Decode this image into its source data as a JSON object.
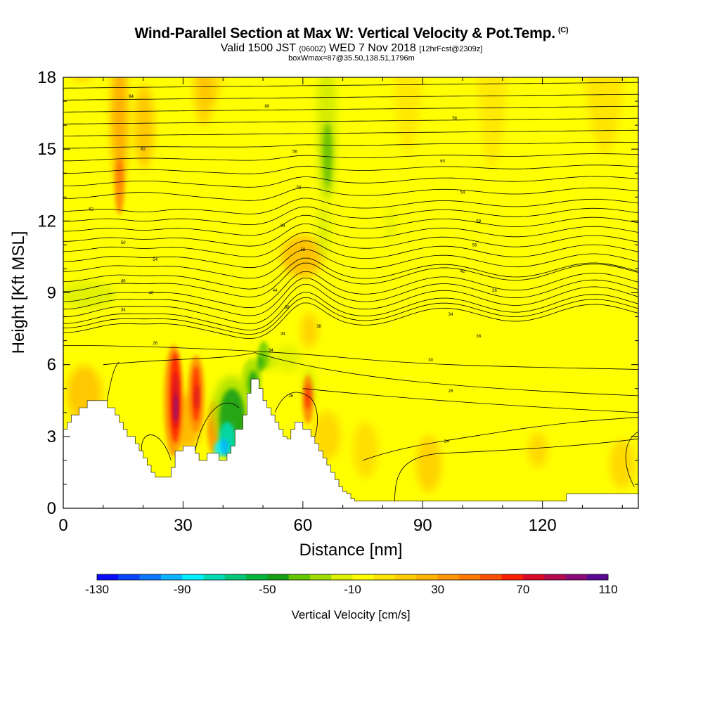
{
  "header": {
    "title": "Wind-Parallel Section at Max W: Vertical Velocity & Pot.Temp.",
    "copyright": "(C)",
    "valid_prefix": "Valid 1500 JST",
    "valid_utc": "(0600Z)",
    "valid_date": "WED 7 Nov 2018",
    "forecast": "[12hrFcst@2309z]",
    "boxinfo": "boxWmax=87@35.50,138.51,1796m"
  },
  "chart_data": {
    "type": "heatmap",
    "xlabel": "Distance [nm]",
    "ylabel": "Height [Kft MSL]",
    "xlim": [
      0,
      144
    ],
    "ylim": [
      0,
      18
    ],
    "xticks": [
      "0",
      "30",
      "60",
      "90",
      "120"
    ],
    "yticks": [
      "0",
      "3",
      "6",
      "9",
      "12",
      "15",
      "18"
    ],
    "colorbar": {
      "label": "Vertical Velocity [cm/s]",
      "min": -130,
      "max": 110,
      "step": 10,
      "tick_labels": [
        "-130",
        "-90",
        "-50",
        "-10",
        "30",
        "70",
        "110"
      ],
      "colors": [
        "#0a0aff",
        "#0a46ff",
        "#0a78ff",
        "#0ab4ff",
        "#00f0ff",
        "#00dcb4",
        "#00c878",
        "#00b43c",
        "#14a014",
        "#64c800",
        "#a0dc00",
        "#dcf000",
        "#ffff00",
        "#ffe600",
        "#ffcd00",
        "#ffb400",
        "#ff9600",
        "#ff7800",
        "#ff5000",
        "#ff1e00",
        "#dc0a28",
        "#b40a50",
        "#8c0a78",
        "#5a0a96"
      ]
    },
    "terrain": [
      [
        0,
        3.3
      ],
      [
        1,
        3.3
      ],
      [
        1,
        3.6
      ],
      [
        2,
        3.6
      ],
      [
        2,
        3.9
      ],
      [
        4,
        3.9
      ],
      [
        4,
        4.2
      ],
      [
        6,
        4.2
      ],
      [
        6,
        4.5
      ],
      [
        11,
        4.5
      ],
      [
        11,
        4.2
      ],
      [
        13,
        4.2
      ],
      [
        13,
        3.9
      ],
      [
        14,
        3.9
      ],
      [
        14,
        3.6
      ],
      [
        15,
        3.6
      ],
      [
        15,
        3.3
      ],
      [
        16,
        3.3
      ],
      [
        16,
        3.0
      ],
      [
        18,
        3.0
      ],
      [
        18,
        2.7
      ],
      [
        19,
        2.7
      ],
      [
        19,
        2.4
      ],
      [
        20,
        2.4
      ],
      [
        20,
        2.1
      ],
      [
        21,
        2.1
      ],
      [
        21,
        1.8
      ],
      [
        22,
        1.8
      ],
      [
        22,
        1.5
      ],
      [
        23,
        1.5
      ],
      [
        23,
        1.3
      ],
      [
        27,
        1.3
      ],
      [
        27,
        1.7
      ],
      [
        28,
        1.7
      ],
      [
        28,
        2.4
      ],
      [
        30,
        2.4
      ],
      [
        30,
        2.6
      ],
      [
        33,
        2.6
      ],
      [
        33,
        2.3
      ],
      [
        34,
        2.3
      ],
      [
        34,
        2.0
      ],
      [
        36,
        2.0
      ],
      [
        36,
        2.3
      ],
      [
        39,
        2.3
      ],
      [
        39,
        2.0
      ],
      [
        41,
        2.0
      ],
      [
        41,
        2.3
      ],
      [
        42,
        2.3
      ],
      [
        42,
        2.6
      ],
      [
        43,
        2.6
      ],
      [
        43,
        3.3
      ],
      [
        45,
        3.3
      ],
      [
        45,
        3.9
      ],
      [
        46,
        3.9
      ],
      [
        46,
        4.8
      ],
      [
        47,
        4.8
      ],
      [
        47,
        5.4
      ],
      [
        49,
        5.4
      ],
      [
        49,
        5.0
      ],
      [
        50,
        5.0
      ],
      [
        50,
        4.5
      ],
      [
        51,
        4.5
      ],
      [
        51,
        4.2
      ],
      [
        52,
        4.2
      ],
      [
        52,
        3.9
      ],
      [
        53,
        3.9
      ],
      [
        53,
        3.6
      ],
      [
        54,
        3.6
      ],
      [
        54,
        3.3
      ],
      [
        55,
        3.3
      ],
      [
        55,
        3.0
      ],
      [
        56,
        3.0
      ],
      [
        56,
        2.9
      ],
      [
        57,
        2.9
      ],
      [
        57,
        3.3
      ],
      [
        58,
        3.3
      ],
      [
        58,
        3.6
      ],
      [
        60,
        3.6
      ],
      [
        60,
        3.3
      ],
      [
        62,
        3.3
      ],
      [
        62,
        3.0
      ],
      [
        63,
        3.0
      ],
      [
        63,
        2.7
      ],
      [
        64,
        2.7
      ],
      [
        64,
        2.4
      ],
      [
        65,
        2.4
      ],
      [
        65,
        2.1
      ],
      [
        66,
        2.1
      ],
      [
        66,
        1.8
      ],
      [
        67,
        1.8
      ],
      [
        67,
        1.5
      ],
      [
        68,
        1.5
      ],
      [
        68,
        1.2
      ],
      [
        69,
        1.2
      ],
      [
        69,
        0.9
      ],
      [
        70,
        0.9
      ],
      [
        70,
        0.7
      ],
      [
        71,
        0.7
      ],
      [
        71,
        0.6
      ],
      [
        72,
        0.6
      ],
      [
        72,
        0.4
      ],
      [
        73,
        0.4
      ],
      [
        73,
        0.3
      ],
      [
        126,
        0.3
      ],
      [
        126,
        0.6
      ],
      [
        144,
        0.6
      ],
      [
        144,
        0
      ]
    ],
    "theta_labels": [
      "64",
      "80",
      "58",
      "62",
      "56",
      "60",
      "62",
      "58",
      "54",
      "50",
      "64",
      "58",
      "54",
      "58",
      "56",
      "46",
      "44",
      "42",
      "40",
      "38",
      "36",
      "34",
      "38",
      "34",
      "26",
      "34",
      "38",
      "34",
      "30",
      "26",
      "28",
      "24"
    ]
  },
  "colors": {
    "background": "#ffff00",
    "outline": "#000000"
  }
}
